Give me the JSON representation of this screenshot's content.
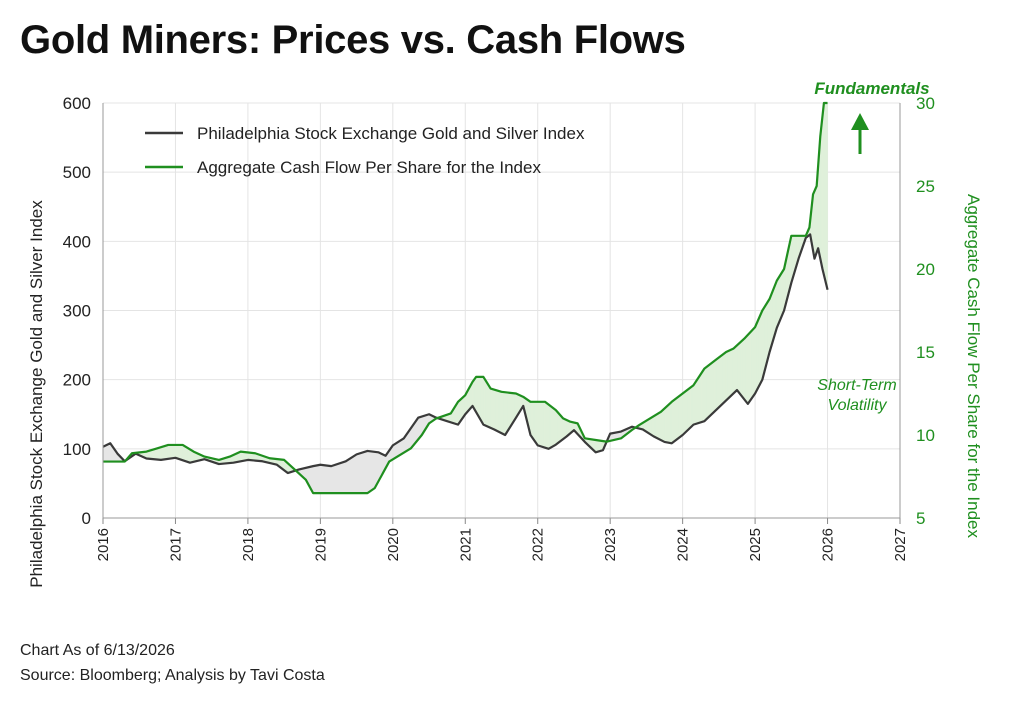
{
  "title": "Gold Miners: Prices vs. Cash Flows",
  "footer": {
    "as_of": "Chart As of 6/13/2026",
    "source": "Source: Bloomberg; Analysis by Tavi Costa"
  },
  "colors": {
    "index_line": "#3a3a3a",
    "cashflow_line": "#1f8f1f",
    "fill_green": "#dff0da",
    "fill_grey": "#e6e6e6",
    "grid": "#e4e4e4",
    "right_axis_text": "#1f8f1f"
  },
  "chart_data": {
    "type": "line",
    "title": "",
    "legend": {
      "placement": "top-left",
      "entries": [
        "Philadelphia Stock Exchange Gold and Silver Index",
        "Aggregate Cash Flow Per Share for the Index"
      ]
    },
    "xlabel": "",
    "x_ticks": [
      "2016",
      "2017",
      "2018",
      "2019",
      "2020",
      "2021",
      "2022",
      "2023",
      "2024",
      "2025",
      "2026",
      "2027"
    ],
    "xlim": [
      2016,
      2027
    ],
    "ylabel_left": "Philadelphia Stock Exchange Gold and Silver Index",
    "ylim_left": [
      0,
      600
    ],
    "yticks_left": [
      0,
      100,
      200,
      300,
      400,
      500,
      600
    ],
    "ylabel_right": "Aggregate Cash Flow Per Share for the Index",
    "ylim_right": [
      5,
      30
    ],
    "yticks_right": [
      5,
      10,
      15,
      20,
      25,
      30
    ],
    "grid": true,
    "annotations": {
      "fundamentals": "Fundamentals",
      "volatility_line1": "Short-Term",
      "volatility_line2": "Volatility"
    },
    "series": [
      {
        "name": "Philadelphia Stock Exchange Gold and Silver Index",
        "axis": "left",
        "points": [
          [
            2016.0,
            103
          ],
          [
            2016.1,
            108
          ],
          [
            2016.2,
            93
          ],
          [
            2016.3,
            82
          ],
          [
            2016.45,
            93
          ],
          [
            2016.6,
            86
          ],
          [
            2016.8,
            84
          ],
          [
            2017.0,
            87
          ],
          [
            2017.2,
            80
          ],
          [
            2017.4,
            85
          ],
          [
            2017.6,
            78
          ],
          [
            2017.8,
            80
          ],
          [
            2018.0,
            84
          ],
          [
            2018.2,
            82
          ],
          [
            2018.4,
            77
          ],
          [
            2018.55,
            65
          ],
          [
            2018.7,
            70
          ],
          [
            2018.9,
            75
          ],
          [
            2019.0,
            77
          ],
          [
            2019.15,
            75
          ],
          [
            2019.35,
            82
          ],
          [
            2019.5,
            92
          ],
          [
            2019.65,
            97
          ],
          [
            2019.8,
            95
          ],
          [
            2019.9,
            90
          ],
          [
            2020.0,
            105
          ],
          [
            2020.15,
            115
          ],
          [
            2020.25,
            130
          ],
          [
            2020.35,
            145
          ],
          [
            2020.5,
            150
          ],
          [
            2020.6,
            145
          ],
          [
            2020.75,
            140
          ],
          [
            2020.9,
            135
          ],
          [
            2021.0,
            150
          ],
          [
            2021.1,
            162
          ],
          [
            2021.25,
            135
          ],
          [
            2021.4,
            128
          ],
          [
            2021.55,
            120
          ],
          [
            2021.7,
            145
          ],
          [
            2021.8,
            162
          ],
          [
            2021.9,
            120
          ],
          [
            2022.0,
            105
          ],
          [
            2022.15,
            100
          ],
          [
            2022.25,
            106
          ],
          [
            2022.4,
            118
          ],
          [
            2022.5,
            127
          ],
          [
            2022.65,
            110
          ],
          [
            2022.8,
            95
          ],
          [
            2022.9,
            98
          ],
          [
            2023.0,
            122
          ],
          [
            2023.15,
            125
          ],
          [
            2023.3,
            132
          ],
          [
            2023.45,
            128
          ],
          [
            2023.6,
            118
          ],
          [
            2023.75,
            110
          ],
          [
            2023.85,
            108
          ],
          [
            2024.0,
            120
          ],
          [
            2024.15,
            135
          ],
          [
            2024.3,
            140
          ],
          [
            2024.45,
            155
          ],
          [
            2024.6,
            170
          ],
          [
            2024.75,
            185
          ],
          [
            2024.9,
            165
          ],
          [
            2025.0,
            180
          ],
          [
            2025.1,
            200
          ],
          [
            2025.2,
            240
          ],
          [
            2025.3,
            275
          ],
          [
            2025.4,
            300
          ],
          [
            2025.5,
            340
          ],
          [
            2025.6,
            375
          ],
          [
            2025.7,
            405
          ],
          [
            2025.76,
            410
          ],
          [
            2025.82,
            375
          ],
          [
            2025.87,
            390
          ],
          [
            2025.93,
            360
          ],
          [
            2026.0,
            330
          ]
        ]
      },
      {
        "name": "Aggregate Cash Flow Per Share for the Index",
        "axis": "right",
        "points": [
          [
            2016.0,
            8.4
          ],
          [
            2016.3,
            8.4
          ],
          [
            2016.4,
            8.9
          ],
          [
            2016.6,
            9.0
          ],
          [
            2016.75,
            9.2
          ],
          [
            2016.9,
            9.4
          ],
          [
            2017.1,
            9.4
          ],
          [
            2017.25,
            9.0
          ],
          [
            2017.4,
            8.7
          ],
          [
            2017.6,
            8.5
          ],
          [
            2017.75,
            8.7
          ],
          [
            2017.9,
            9.0
          ],
          [
            2018.1,
            8.9
          ],
          [
            2018.3,
            8.6
          ],
          [
            2018.5,
            8.5
          ],
          [
            2018.65,
            7.9
          ],
          [
            2018.8,
            7.3
          ],
          [
            2018.9,
            6.5
          ],
          [
            2019.1,
            6.5
          ],
          [
            2019.4,
            6.5
          ],
          [
            2019.65,
            6.5
          ],
          [
            2019.75,
            6.8
          ],
          [
            2019.85,
            7.6
          ],
          [
            2019.95,
            8.4
          ],
          [
            2020.1,
            8.8
          ],
          [
            2020.25,
            9.2
          ],
          [
            2020.4,
            10.0
          ],
          [
            2020.5,
            10.7
          ],
          [
            2020.6,
            11.0
          ],
          [
            2020.8,
            11.3
          ],
          [
            2020.9,
            12.0
          ],
          [
            2021.0,
            12.4
          ],
          [
            2021.1,
            13.2
          ],
          [
            2021.15,
            13.5
          ],
          [
            2021.25,
            13.5
          ],
          [
            2021.35,
            12.8
          ],
          [
            2021.5,
            12.6
          ],
          [
            2021.7,
            12.5
          ],
          [
            2021.8,
            12.3
          ],
          [
            2021.9,
            12.0
          ],
          [
            2022.1,
            12.0
          ],
          [
            2022.25,
            11.5
          ],
          [
            2022.35,
            11.0
          ],
          [
            2022.45,
            10.8
          ],
          [
            2022.55,
            10.7
          ],
          [
            2022.65,
            9.8
          ],
          [
            2022.8,
            9.7
          ],
          [
            2022.95,
            9.6
          ],
          [
            2023.15,
            9.8
          ],
          [
            2023.3,
            10.3
          ],
          [
            2023.4,
            10.6
          ],
          [
            2023.55,
            11.0
          ],
          [
            2023.7,
            11.4
          ],
          [
            2023.85,
            12.0
          ],
          [
            2024.0,
            12.5
          ],
          [
            2024.15,
            13.0
          ],
          [
            2024.3,
            14.0
          ],
          [
            2024.45,
            14.5
          ],
          [
            2024.6,
            15.0
          ],
          [
            2024.7,
            15.2
          ],
          [
            2024.85,
            15.8
          ],
          [
            2025.0,
            16.5
          ],
          [
            2025.1,
            17.5
          ],
          [
            2025.2,
            18.2
          ],
          [
            2025.3,
            19.3
          ],
          [
            2025.4,
            20.0
          ],
          [
            2025.5,
            22.0
          ],
          [
            2025.6,
            22.0
          ],
          [
            2025.7,
            22.0
          ],
          [
            2025.75,
            22.5
          ],
          [
            2025.8,
            24.5
          ],
          [
            2025.85,
            25.0
          ],
          [
            2025.9,
            28.0
          ],
          [
            2025.95,
            30.0
          ],
          [
            2026.0,
            30.0
          ]
        ]
      }
    ]
  }
}
